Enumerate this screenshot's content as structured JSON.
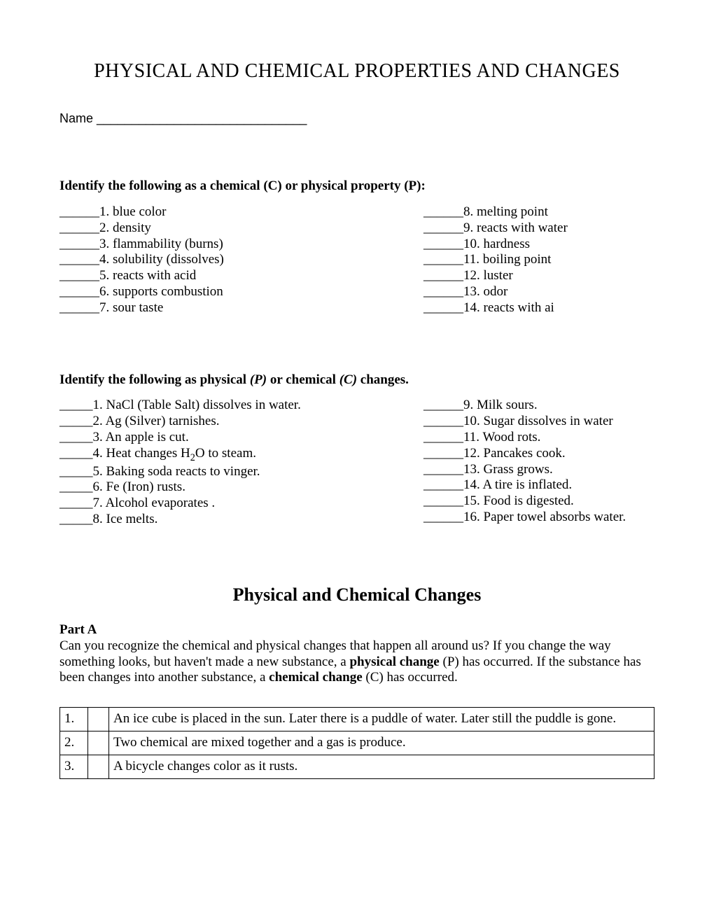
{
  "main_title": "PHYSICAL AND CHEMICAL PROPERTIES AND CHANGES",
  "name_label": "Name ______________________________",
  "section1": {
    "heading": "Identify the following as a chemical (C) or physical property (P):",
    "left": [
      "______1.  blue color",
      "______2.  density",
      "______3.  flammability (burns)",
      "______4.  solubility (dissolves)",
      "______5.  reacts with acid",
      "______6.  supports combustion",
      "______7.  sour taste"
    ],
    "right": [
      "______8.  melting point",
      "______9.  reacts with water",
      "______10.  hardness",
      "______11.  boiling point",
      "______12.  luster",
      "______13.  odor",
      "______14.  reacts with ai"
    ]
  },
  "section2": {
    "heading_pre": "Identify the following as physical ",
    "heading_p": "(P)",
    "heading_mid": " or chemical ",
    "heading_c": "(C)",
    "heading_post": " changes.",
    "left": [
      "_____1.  NaCl (Table Salt) dissolves in water.",
      "_____2.  Ag (Silver) tarnishes.",
      "_____3.  An apple is cut.",
      "_____4.  Heat changes H2O to steam.",
      "_____5.  Baking soda reacts to vinger.",
      "_____6.  Fe (Iron) rusts.",
      "_____7.  Alcohol evaporates  .",
      "_____8.  Ice melts."
    ],
    "right": [
      "______9.  Milk sours.",
      "______10.  Sugar dissolves in water",
      "______11.  Wood rots.",
      "______12.  Pancakes cook.",
      "______13.  Grass grows.",
      "______14.  A tire is inflated.",
      "______15.  Food is digested.",
      "______16.  Paper towel absorbs water."
    ]
  },
  "subtitle": "Physical and Chemical Changes",
  "part_a_label": "Part A",
  "intro": {
    "pre": "Can you recognize the chemical and physical changes that happen all around us?  If you change the way something looks, but haven't made a new substance, a ",
    "bold1": "physical change",
    "mid": " (P) has occurred.  If the substance has been changes into another substance, a ",
    "bold2": "chemical change",
    "post": " (C) has occurred."
  },
  "table_rows": [
    {
      "num": "1.",
      "text": "An ice cube is placed in the sun.  Later there is a puddle of water.  Later still the puddle is gone."
    },
    {
      "num": "2.",
      "text": "Two chemical are mixed together and a gas is produce."
    },
    {
      "num": "3.",
      "text": "A bicycle changes color as it rusts."
    }
  ]
}
